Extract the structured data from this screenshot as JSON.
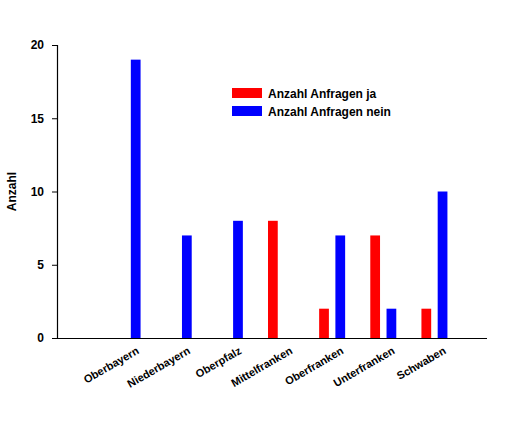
{
  "chart_data": {
    "type": "bar",
    "y_label": "Anzahl",
    "categories": [
      "Oberbayern",
      "Niederbayern",
      "Oberpfalz",
      "Mittelfranken",
      "Oberfranken",
      "Unterfranken",
      "Schwaben"
    ],
    "series": [
      {
        "name": "Anzahl Anfragen ja",
        "color": "#ff0000",
        "values": [
          0,
          0,
          0,
          8,
          2,
          7,
          2
        ]
      },
      {
        "name": "Anzahl Anfragen nein",
        "color": "#0000ff",
        "values": [
          19,
          7,
          8,
          0,
          7,
          2,
          10
        ]
      }
    ],
    "ylim": [
      0,
      20
    ],
    "yticks": [
      0,
      5,
      10,
      15,
      20
    ],
    "grid": false,
    "legend": "top"
  }
}
